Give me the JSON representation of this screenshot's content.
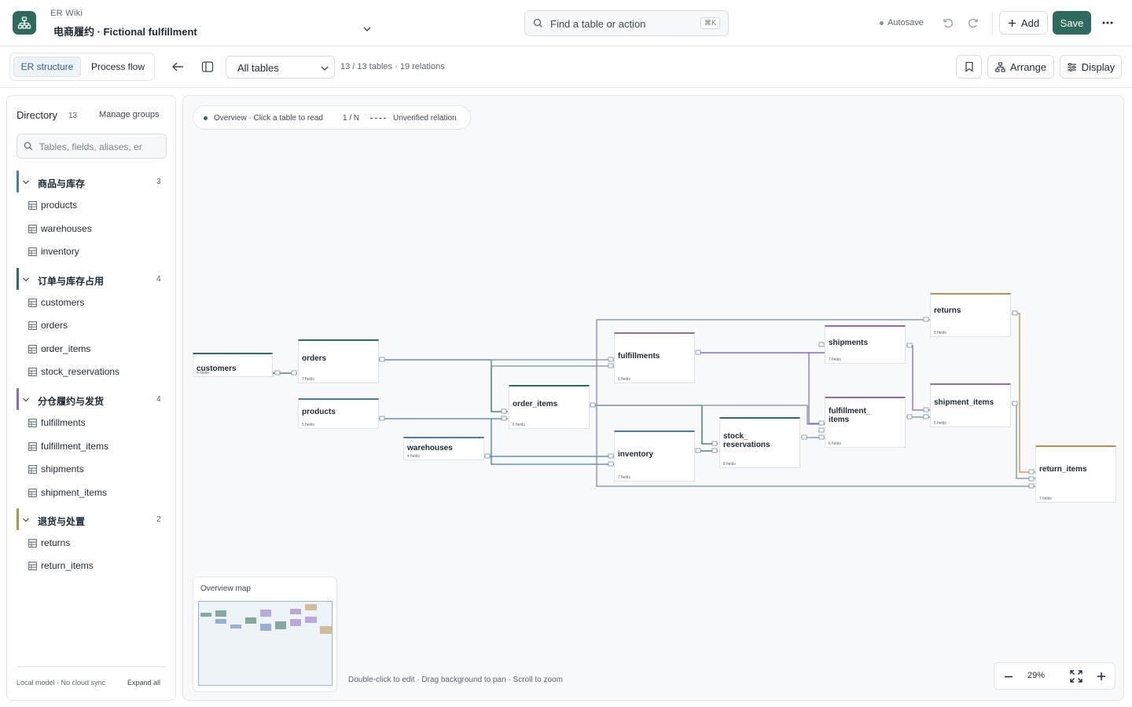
{
  "app": {
    "name": "ER Wiki",
    "project": "电商履约 · Fictional fulfillment",
    "search_placeholder": "Find a table or action",
    "search_shortcut": "⌘K",
    "autosave": "Autosave",
    "add_label": "Add",
    "save_label": "Save",
    "accent": "#2e6b5e"
  },
  "toolbar": {
    "tab_er": "ER structure",
    "tab_flow": "Process flow",
    "filter_value": "All tables",
    "stats": "13 / 13 tables · 19 relations",
    "arrange": "Arrange",
    "display": "Display"
  },
  "sidebar": {
    "title": "Directory",
    "count": "13",
    "manage": "Manage groups",
    "search_placeholder": "Tables, fields, aliases, er",
    "groups": [
      {
        "label": "商品与库存",
        "count": "3",
        "color": "#4a7bb0",
        "items": [
          "products",
          "warehouses",
          "inventory"
        ]
      },
      {
        "label": "订单与库存占用",
        "count": "4",
        "color": "#2e6b5e",
        "items": [
          "customers",
          "orders",
          "order_items",
          "stock_reservations"
        ]
      },
      {
        "label": "分仓履约与发货",
        "count": "4",
        "color": "#8a6bbf",
        "items": [
          "fulfillments",
          "fulfillment_items",
          "shipments",
          "shipment_items"
        ]
      },
      {
        "label": "退货与处置",
        "count": "2",
        "color": "#b8904f",
        "items": [
          "returns",
          "return_items"
        ]
      }
    ],
    "footer_left": "Local model · No cloud sync",
    "footer_right": "Expand all"
  },
  "canvas": {
    "legend_overview": "Overview · Click a table to read",
    "legend_cardinality": "1 / N",
    "legend_unverified": "Unverified relation",
    "tables": [
      {
        "name": "customers",
        "fields": "4 fields",
        "color": "#2e6b5e"
      },
      {
        "name": "orders",
        "fields": "7 fields",
        "color": "#2e6b5e"
      },
      {
        "name": "products",
        "fields": "5 fields",
        "color": "#4a7bb0"
      },
      {
        "name": "warehouses",
        "fields": "4 fields",
        "color": "#4a7bb0"
      },
      {
        "name": "order_items",
        "fields": "6 fields",
        "color": "#2e6b5e"
      },
      {
        "name": "fulfillments",
        "fields": "6 fields",
        "color": "#8a6bbf"
      },
      {
        "name": "inventory",
        "fields": "7 fields",
        "color": "#4a7bb0"
      },
      {
        "name": "stock_ reservations",
        "fields": "8 fields",
        "color": "#2e6b5e"
      },
      {
        "name": "shipments",
        "fields": "7 fields",
        "color": "#8a6bbf"
      },
      {
        "name": "fulfillment_ items",
        "fields": "6 fields",
        "color": "#8a6bbf"
      },
      {
        "name": "returns",
        "fields": "5 fields",
        "color": "#b8904f"
      },
      {
        "name": "shipment_items",
        "fields": "5 fields",
        "color": "#8a6bbf"
      },
      {
        "name": "return_items",
        "fields": "7 fields",
        "color": "#b8904f"
      }
    ],
    "overview_title": "Overview map",
    "hint": "Double-click to edit · Drag background to pan · Scroll to zoom",
    "zoom": "29%"
  }
}
